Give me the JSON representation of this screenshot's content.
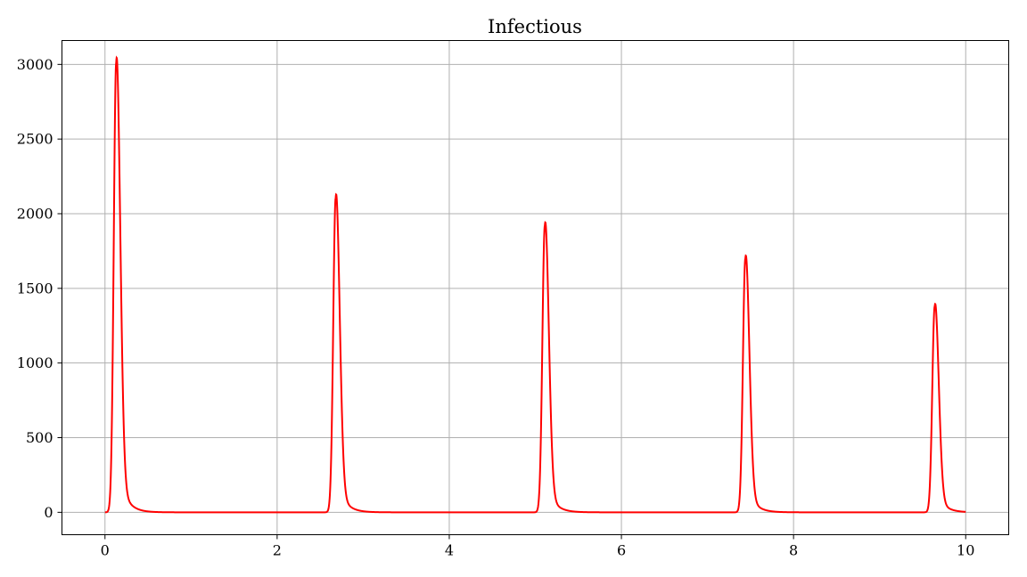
{
  "chart_data": {
    "type": "line",
    "title": "Infectious",
    "xlabel": "",
    "ylabel": "",
    "xlim": [
      -0.5,
      10.5
    ],
    "ylim": [
      -150,
      3160
    ],
    "xticks": [
      0,
      2,
      4,
      6,
      8,
      10
    ],
    "yticks": [
      0,
      500,
      1000,
      1500,
      2000,
      2500,
      3000
    ],
    "grid": true,
    "series": [
      {
        "color": "#ff0000",
        "peaks": [
          {
            "t": 0.13,
            "height": 3010
          },
          {
            "t": 2.68,
            "height": 2105
          },
          {
            "t": 5.11,
            "height": 1920
          },
          {
            "t": 7.44,
            "height": 1700
          },
          {
            "t": 9.64,
            "height": 1380
          }
        ],
        "x_start": 0,
        "x_end": 10,
        "baseline": 0
      }
    ]
  }
}
